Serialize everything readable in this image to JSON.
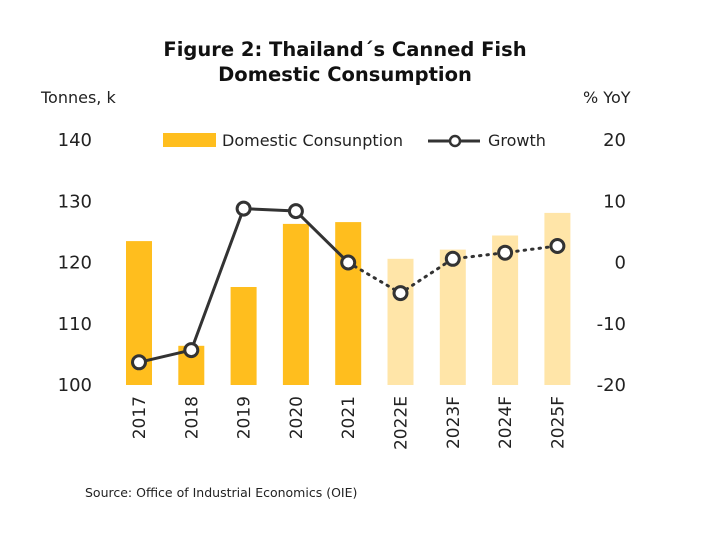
{
  "title_line1": "Figure 2: Thailand´s Canned Fish",
  "title_line2": "Domestic Consumption",
  "y_left_unit": "Tonnes, k",
  "y_right_unit": "% YoY",
  "source": "Source: Office of Industrial Economics (OIE)",
  "colors": {
    "bar_actual": "#FFBE1E",
    "bar_forecast": "#FFE5A8",
    "line": "#333333",
    "marker_fill": "#ffffff"
  },
  "chart_data": {
    "type": "bar",
    "categories": [
      "2017",
      "2018",
      "2019",
      "2020",
      "2021",
      "2022E",
      "2023F",
      "2024F",
      "2025F"
    ],
    "forecast_from_index": 5,
    "series": [
      {
        "name": "Domestic Consunption",
        "axis": "left",
        "type": "bar",
        "values": [
          123.5,
          106.4,
          116.0,
          126.3,
          126.6,
          120.6,
          122.1,
          124.4,
          128.1
        ]
      },
      {
        "name": "Growth",
        "axis": "right",
        "type": "line",
        "values": [
          -16.3,
          -14.3,
          8.8,
          8.4,
          0.0,
          -5.0,
          0.6,
          1.6,
          2.7
        ]
      }
    ],
    "y_left": {
      "ticks": [
        "100",
        "110",
        "120",
        "130",
        "140"
      ],
      "range": [
        100,
        140
      ]
    },
    "y_right": {
      "ticks": [
        "-20",
        "-10",
        "0",
        "10",
        "20"
      ],
      "range": [
        -20,
        20
      ]
    },
    "grid": false,
    "legend_position": "top"
  }
}
